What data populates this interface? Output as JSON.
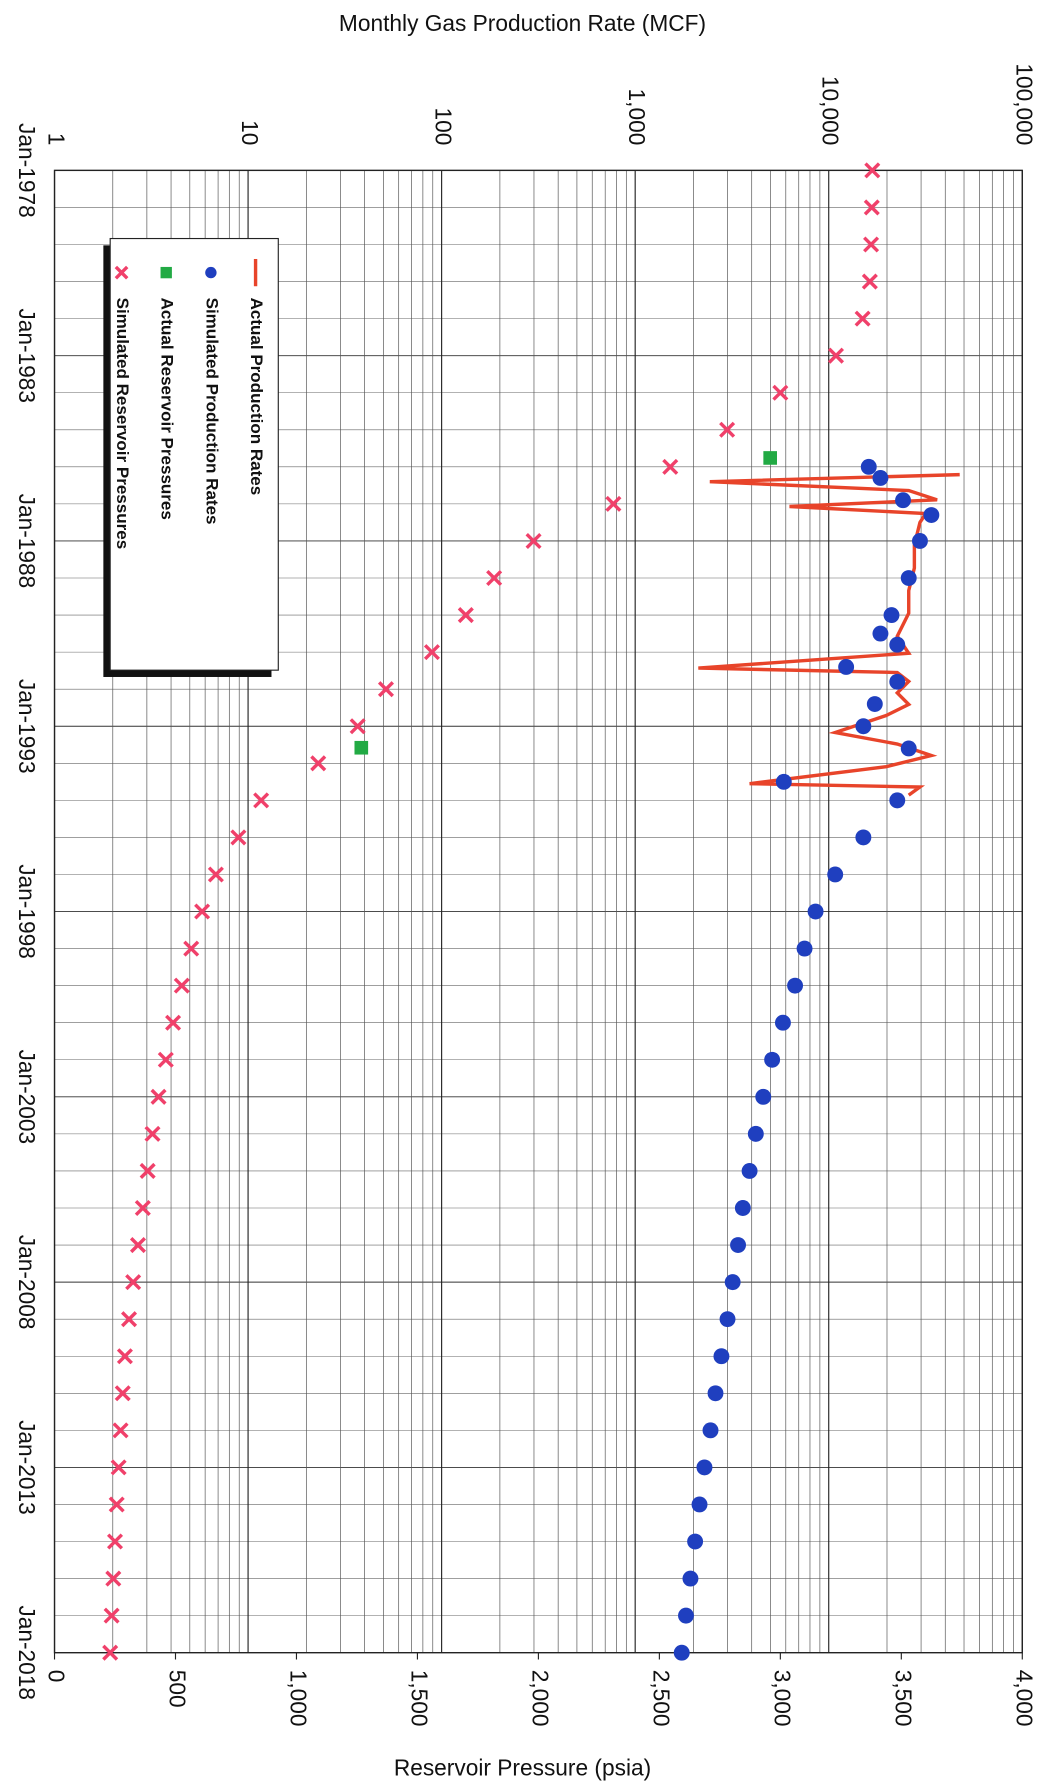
{
  "chart_data": {
    "type": "line",
    "title": "Monthly Gas Production Rate (MCF)",
    "y2_label": "Reservoir Pressure (psia)",
    "xlim": [
      1978,
      2018
    ],
    "xticks": [
      {
        "value": 1978,
        "label": "Jan-1978"
      },
      {
        "value": 1983,
        "label": "Jan-1983"
      },
      {
        "value": 1988,
        "label": "Jan-1988"
      },
      {
        "value": 1993,
        "label": "Jan-1993"
      },
      {
        "value": 1998,
        "label": "Jan-1998"
      },
      {
        "value": 2003,
        "label": "Jan-2003"
      },
      {
        "value": 2008,
        "label": "Jan-2008"
      },
      {
        "value": 2013,
        "label": "Jan-2013"
      },
      {
        "value": 2018,
        "label": "Jan-2018"
      }
    ],
    "ylim": [
      1,
      100000
    ],
    "log_y": true,
    "yticks": [
      1,
      10,
      100,
      {
        "value": 1000,
        "label": "1,000"
      },
      {
        "value": 10000,
        "label": "10,000"
      },
      {
        "value": 100000,
        "label": "100,000"
      }
    ],
    "y2lim": [
      0,
      4000
    ],
    "y2ticks": [
      0,
      500,
      {
        "value": 1000,
        "label": "1,000"
      },
      {
        "value": 1500,
        "label": "1,500"
      },
      {
        "value": 2000,
        "label": "2,000"
      },
      {
        "value": 2500,
        "label": "2,500"
      },
      {
        "value": 3000,
        "label": "3,000"
      },
      {
        "value": 3500,
        "label": "3,500"
      },
      {
        "value": 4000,
        "label": "4,000"
      }
    ],
    "grid": true,
    "minor_grid": true,
    "rotated": true,
    "legend": "upper-left",
    "series": [
      {
        "name": "Actual Production Rates",
        "type": "line",
        "color": "#e8442a",
        "axis": "y",
        "x": [
          1986.21,
          1986.4,
          1986.64,
          1986.89,
          1987.07,
          1987.26,
          1987.5,
          1988.11,
          1988.73,
          1989.34,
          1989.95,
          1990.57,
          1991.03,
          1991.43,
          1991.55,
          1991.79,
          1992.1,
          1992.41,
          1992.71,
          1993.17,
          1993.48,
          1993.79,
          1994.09,
          1994.55,
          1994.64,
          1994.86
        ],
        "values": [
          47500,
          2430,
          25900,
          36300,
          6270,
          31700,
          29600,
          27700,
          27700,
          25900,
          25900,
          22600,
          25900,
          2120,
          22600,
          25900,
          22600,
          25900,
          19800,
          10800,
          22600,
          33900,
          19800,
          3900,
          29600,
          25900
        ]
      },
      {
        "name": "Simulated Production Rates",
        "type": "scatter",
        "marker": "circle",
        "color": "#1f3fbf",
        "axis": "y",
        "x": [
          1986.0,
          1986.3,
          1986.9,
          1987.3,
          1988.0,
          1989.0,
          1990.0,
          1990.5,
          1990.8,
          1991.4,
          1991.8,
          1992.4,
          1993.0,
          1993.6,
          1994.5,
          1995.0,
          1996.0,
          1997.0,
          1998.0,
          1999.0,
          2000.0,
          2001.0,
          2002.0,
          2003.0,
          2004.0,
          2005.0,
          2006.0,
          2007.0,
          2008.0,
          2009.0,
          2010.0,
          2011.0,
          2012.0,
          2013.0,
          2014.0,
          2015.0,
          2016.0,
          2017.0,
          2018.0
        ],
        "values": [
          16100,
          18500,
          24200,
          33900,
          29600,
          25900,
          21100,
          18500,
          22600,
          12300,
          22600,
          17300,
          15100,
          25900,
          5860,
          22600,
          15100,
          10800,
          8550,
          7500,
          6700,
          5800,
          5100,
          4590,
          4200,
          3900,
          3600,
          3400,
          3190,
          3000,
          2790,
          2600,
          2450,
          2280,
          2150,
          2040,
          1930,
          1830,
          1740
        ]
      },
      {
        "name": "Actual Reservoir Pressures",
        "type": "scatter",
        "marker": "square",
        "color": "#22aa44",
        "axis": "y2",
        "x": [
          1985.76,
          1993.58
        ],
        "values": [
          2958,
          1268
        ]
      },
      {
        "name": "Simulated Reservoir Pressures",
        "type": "scatter",
        "marker": "x",
        "color": "#f0406a",
        "axis": "y2",
        "x": [
          1978,
          1979,
          1980,
          1981,
          1982,
          1983,
          1984,
          1985,
          1986,
          1987,
          1988,
          1989,
          1990,
          1991,
          1992,
          1993,
          1994,
          1995,
          1996,
          1997,
          1998,
          1999,
          2000,
          2001,
          2002,
          2003,
          2004,
          2005,
          2006,
          2007,
          2008,
          2009,
          2010,
          2011,
          2012,
          2013,
          2014,
          2015,
          2016,
          2017,
          2018
        ],
        "values": [
          3380,
          3378,
          3375,
          3370,
          3340,
          3230,
          3000,
          2780,
          2545,
          2310,
          1980,
          1817,
          1700,
          1560,
          1370,
          1253,
          1090,
          854,
          760,
          667,
          610,
          565,
          526,
          490,
          460,
          430,
          405,
          385,
          365,
          345,
          325,
          308,
          291,
          282,
          273,
          265,
          257,
          250,
          243,
          236,
          230
        ]
      }
    ]
  }
}
